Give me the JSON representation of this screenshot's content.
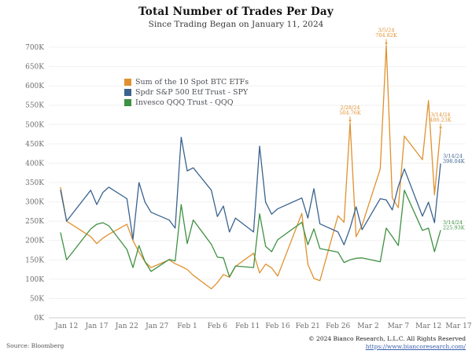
{
  "header": {
    "title": "Total Number of Trades Per Day",
    "subtitle": "Since Trading Began on January 11, 2024"
  },
  "footer": {
    "source": "Source: Bloomberg",
    "copyright": "© 2024 Bianco Research, L.L.C. All Rights Reserved",
    "url": "https://www.biancoresearch.com/"
  },
  "chart_data": {
    "type": "line",
    "title": "Total Number of Trades Per Day",
    "subtitle": "Since Trading Began on January 11, 2024",
    "xlabel": "",
    "ylabel": "",
    "grid": "horizontal",
    "legend_position": "upper-left-inside",
    "ylim_thousands": [
      0,
      730
    ],
    "y_ticks": [
      {
        "v": 0,
        "t": "0K"
      },
      {
        "v": 50,
        "t": "50K"
      },
      {
        "v": 100,
        "t": "100K"
      },
      {
        "v": 150,
        "t": "150K"
      },
      {
        "v": 200,
        "t": "200K"
      },
      {
        "v": 250,
        "t": "250K"
      },
      {
        "v": 300,
        "t": "300K"
      },
      {
        "v": 350,
        "t": "350K"
      },
      {
        "v": 400,
        "t": "400K"
      },
      {
        "v": 450,
        "t": "450K"
      },
      {
        "v": 500,
        "t": "500K"
      },
      {
        "v": 550,
        "t": "550K"
      },
      {
        "v": 600,
        "t": "600K"
      },
      {
        "v": 650,
        "t": "650K"
      },
      {
        "v": 700,
        "t": "700K"
      }
    ],
    "x_ticks": [
      {
        "d": 1,
        "t": "Jan 12"
      },
      {
        "d": 6,
        "t": "Jan 17"
      },
      {
        "d": 11,
        "t": "Jan 22"
      },
      {
        "d": 16,
        "t": "Jan 27"
      },
      {
        "d": 21,
        "t": "Feb 1"
      },
      {
        "d": 26,
        "t": "Feb 6"
      },
      {
        "d": 31,
        "t": "Feb 11"
      },
      {
        "d": 36,
        "t": "Feb 16"
      },
      {
        "d": 41,
        "t": "Feb 21"
      },
      {
        "d": 46,
        "t": "Feb 26"
      },
      {
        "d": 51,
        "t": "Mar 2"
      },
      {
        "d": 56,
        "t": "Mar 7"
      },
      {
        "d": 61,
        "t": "Mar 12"
      },
      {
        "d": 66,
        "t": "Mar 17"
      }
    ],
    "x_dates": [
      "1/11",
      "1/12",
      "1/16",
      "1/17",
      "1/18",
      "1/19",
      "1/22",
      "1/23",
      "1/24",
      "1/25",
      "1/26",
      "1/29",
      "1/30",
      "1/31",
      "2/1",
      "2/2",
      "2/5",
      "2/6",
      "2/7",
      "2/8",
      "2/9",
      "2/12",
      "2/13",
      "2/14",
      "2/15",
      "2/16",
      "2/20",
      "2/21",
      "2/22",
      "2/23",
      "2/26",
      "2/27",
      "2/28",
      "2/29",
      "3/1",
      "3/4",
      "3/5",
      "3/6",
      "3/7",
      "3/8",
      "3/11",
      "3/12",
      "3/13",
      "3/14"
    ],
    "x_days": [
      0,
      1,
      5,
      6,
      7,
      8,
      11,
      12,
      13,
      14,
      15,
      18,
      19,
      20,
      21,
      22,
      25,
      26,
      27,
      28,
      29,
      32,
      33,
      34,
      35,
      36,
      40,
      41,
      42,
      43,
      46,
      47,
      48,
      49,
      50,
      53,
      54,
      55,
      56,
      57,
      60,
      61,
      62,
      63
    ],
    "series": [
      {
        "name": "Sum of the 10 Spot BTC ETFs",
        "color": "#E0912F",
        "values": [
          337,
          250,
          210,
          192,
          206,
          216,
          242,
          200,
          170,
          145,
          130,
          150,
          140,
          133,
          125,
          110,
          75,
          91,
          112,
          105,
          133,
          167,
          116,
          139,
          129,
          108,
          270,
          139,
          102,
          96,
          264,
          247,
          504.76,
          210,
          240,
          385,
          704.82,
          310,
          285,
          470,
          409,
          562,
          318,
          486.23
        ]
      },
      {
        "name": "Spdr S&P 500 Etf Trust - SPY",
        "color": "#3A6390",
        "values": [
          330,
          250,
          330,
          293,
          324,
          338,
          308,
          203,
          350,
          299,
          273,
          253,
          232,
          467,
          380,
          388,
          330,
          262,
          289,
          222,
          258,
          222,
          444,
          299,
          268,
          282,
          310,
          258,
          334,
          243,
          222,
          189,
          232,
          287,
          228,
          308,
          305,
          279,
          340,
          385,
          263,
          299,
          246,
          398.04
        ]
      },
      {
        "name": "Invesco QQQ Trust - QQQ",
        "color": "#3F9143",
        "values": [
          220,
          150,
          230,
          242,
          246,
          238,
          177,
          130,
          187,
          145,
          120,
          151,
          147,
          293,
          192,
          253,
          190,
          157,
          155,
          106,
          134,
          130,
          269,
          185,
          171,
          202,
          247,
          189,
          230,
          179,
          170,
          143,
          150,
          154,
          155,
          145,
          232,
          210,
          187,
          330,
          226,
          232,
          171,
          225.93
        ]
      }
    ],
    "annotations": [
      {
        "date": "2/28/24",
        "value_label": "504.76K",
        "series": 0,
        "day": 48,
        "value": 504.76,
        "arrow": true
      },
      {
        "date": "3/5/24",
        "value_label": "704.82K",
        "series": 0,
        "day": 54,
        "value": 704.82,
        "arrow": true
      },
      {
        "date": "3/14/24",
        "value_label": "486.23K",
        "series": 0,
        "day": 63,
        "value": 486.23,
        "arrow": true
      },
      {
        "date": "3/14/24",
        "value_label": "398.04K",
        "series": 1,
        "day": 63,
        "value": 398.04,
        "arrow": false
      },
      {
        "date": "3/14/24",
        "value_label": "225.93K",
        "series": 2,
        "day": 63,
        "value": 225.93,
        "arrow": false
      }
    ]
  }
}
